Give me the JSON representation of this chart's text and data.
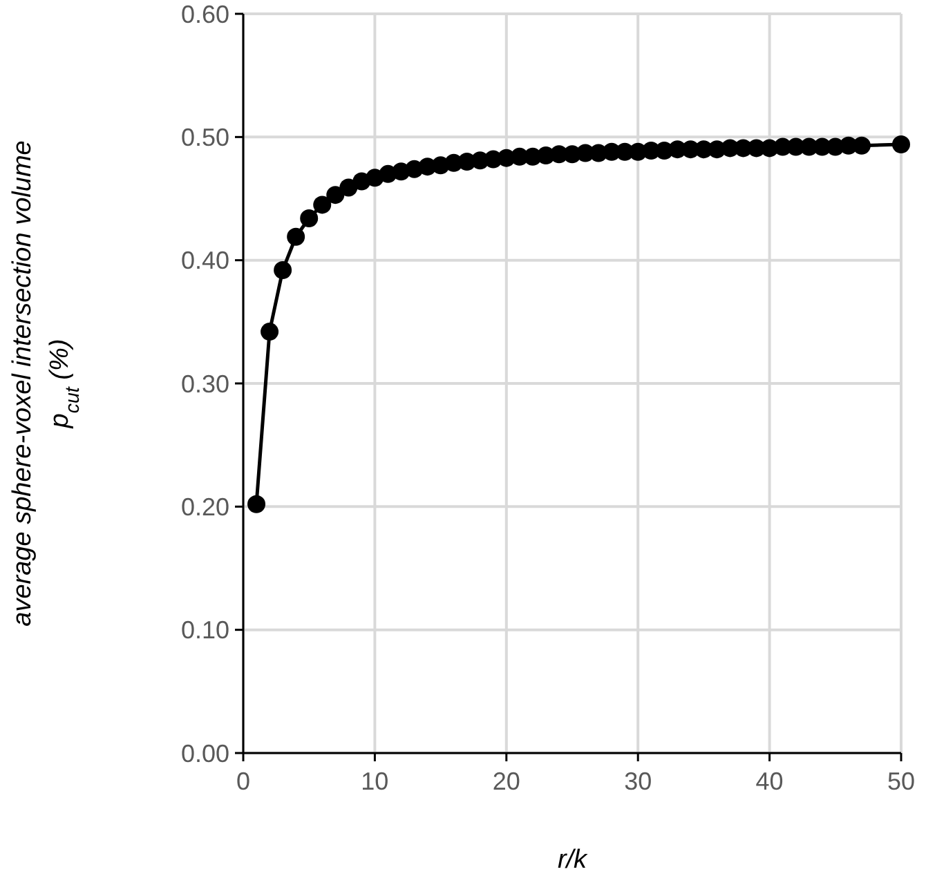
{
  "chart_data": {
    "type": "line",
    "xlabel": "r/k",
    "ylabel": "average sphere-voxel intersection volume\np$_{cut}$ (%)",
    "x": [
      1,
      2,
      3,
      4,
      5,
      6,
      7,
      8,
      9,
      10,
      11,
      12,
      13,
      14,
      15,
      16,
      17,
      18,
      19,
      20,
      21,
      22,
      23,
      24,
      25,
      26,
      27,
      28,
      29,
      30,
      31,
      32,
      33,
      34,
      35,
      36,
      37,
      38,
      39,
      40,
      41,
      42,
      43,
      44,
      45,
      46,
      47,
      50
    ],
    "series": [
      {
        "color": "#000000",
        "values": [
          0.202,
          0.342,
          0.392,
          0.419,
          0.434,
          0.445,
          0.453,
          0.459,
          0.464,
          0.467,
          0.47,
          0.472,
          0.474,
          0.476,
          0.477,
          0.479,
          0.48,
          0.481,
          0.482,
          0.483,
          0.484,
          0.484,
          0.485,
          0.486,
          0.486,
          0.487,
          0.487,
          0.488,
          0.488,
          0.488,
          0.489,
          0.489,
          0.49,
          0.49,
          0.49,
          0.49,
          0.491,
          0.491,
          0.491,
          0.491,
          0.492,
          0.492,
          0.492,
          0.492,
          0.492,
          0.493,
          0.493,
          0.494
        ]
      }
    ],
    "xlim": [
      0,
      50
    ],
    "xticks": [
      0,
      10,
      20,
      30,
      40,
      50
    ],
    "ylim": [
      0,
      0.6
    ],
    "yticks": [
      {
        "value": 0,
        "label": "0.00"
      },
      {
        "value": 0.1,
        "label": "0.10"
      },
      {
        "value": 0.2,
        "label": "0.20"
      },
      {
        "value": 0.3,
        "label": "0.30"
      },
      {
        "value": 0.4,
        "label": "0.40"
      },
      {
        "value": 0.5,
        "label": "0.50"
      },
      {
        "value": 0.6,
        "label": "0.60"
      }
    ],
    "grid": true,
    "marker": "circle",
    "line_style": "solid"
  }
}
